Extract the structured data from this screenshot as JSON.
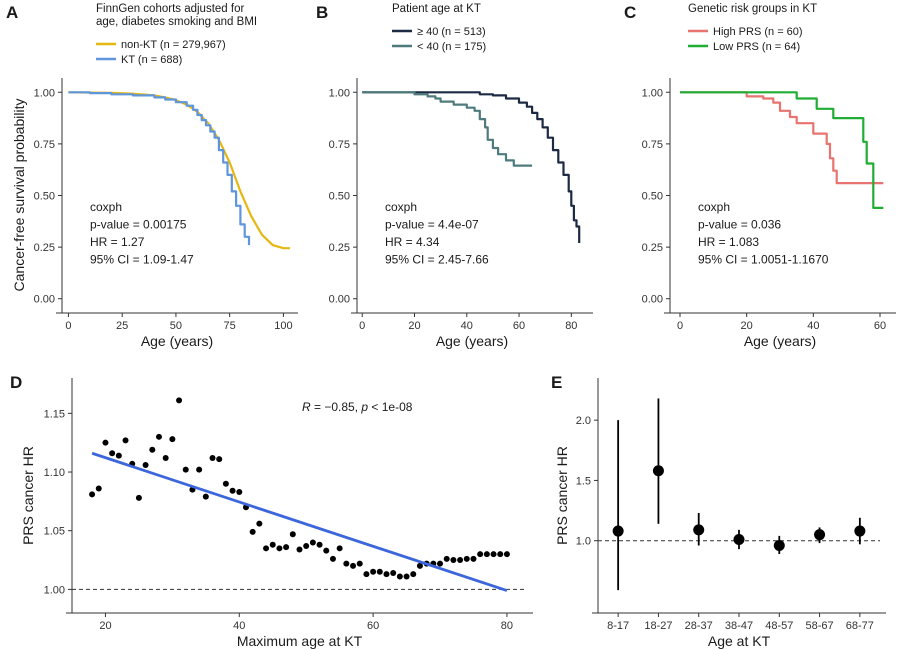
{
  "figure_labels": {
    "row1_ylabel": "Cancer-free survival probability",
    "row1_xlabel": "Age (years)"
  },
  "chart_data": [
    {
      "id": "A",
      "type": "line",
      "title": "FinnGen cohorts adjusted for age, diabetes smoking and BMI",
      "title_lines": [
        "FinnGen cohorts adjusted for",
        "age, diabetes smoking and BMI"
      ],
      "xlabel": "Age (years)",
      "ylabel": "Cancer-free survival probability",
      "xlim": [
        -3,
        104
      ],
      "ylim": [
        -0.04,
        1.04
      ],
      "xticks": [
        0,
        25,
        50,
        75,
        100
      ],
      "yticks": [
        0.0,
        0.25,
        0.5,
        0.75,
        1.0
      ],
      "legend_position": "top-left",
      "series": [
        {
          "name": "non-KT (n = 279,967)",
          "color": "#E5B70F",
          "step": false,
          "points": [
            [
              0,
              1.0
            ],
            [
              20,
              0.997
            ],
            [
              30,
              0.993
            ],
            [
              40,
              0.985
            ],
            [
              45,
              0.975
            ],
            [
              50,
              0.962
            ],
            [
              55,
              0.94
            ],
            [
              60,
              0.905
            ],
            [
              65,
              0.85
            ],
            [
              70,
              0.77
            ],
            [
              75,
              0.66
            ],
            [
              80,
              0.52
            ],
            [
              85,
              0.4
            ],
            [
              90,
              0.31
            ],
            [
              95,
              0.26
            ],
            [
              100,
              0.245
            ],
            [
              103,
              0.245
            ]
          ]
        },
        {
          "name": "KT (n = 688)",
          "color": "#5E95DC",
          "step": true,
          "points": [
            [
              0,
              1.0
            ],
            [
              10,
              0.996
            ],
            [
              20,
              0.99
            ],
            [
              30,
              0.985
            ],
            [
              40,
              0.975
            ],
            [
              45,
              0.965
            ],
            [
              50,
              0.952
            ],
            [
              55,
              0.935
            ],
            [
              58,
              0.915
            ],
            [
              60,
              0.89
            ],
            [
              62,
              0.865
            ],
            [
              64,
              0.84
            ],
            [
              66,
              0.81
            ],
            [
              68,
              0.78
            ],
            [
              70,
              0.72
            ],
            [
              72,
              0.66
            ],
            [
              74,
              0.6
            ],
            [
              76,
              0.52
            ],
            [
              78,
              0.45
            ],
            [
              80,
              0.36
            ],
            [
              82,
              0.3
            ],
            [
              84,
              0.26
            ]
          ]
        }
      ],
      "annotations": [
        "coxph",
        " p-value = 0.00175",
        "HR = 1.27",
        "95% CI = 1.09-1.47"
      ]
    },
    {
      "id": "B",
      "type": "line",
      "title": "Patient age at KT",
      "title_lines": [
        "Patient age at KT"
      ],
      "xlabel": "Age (years)",
      "ylabel": "",
      "xlim": [
        -2,
        86
      ],
      "ylim": [
        -0.04,
        1.04
      ],
      "xticks": [
        0,
        20,
        40,
        60,
        80
      ],
      "yticks": [
        0.0,
        0.25,
        0.5,
        0.75,
        1.0
      ],
      "legend_position": "top-left",
      "series": [
        {
          "name": "≥ 40 (n = 513)",
          "color": "#1C2A44",
          "step": true,
          "points": [
            [
              0,
              1.0
            ],
            [
              40,
              1.0
            ],
            [
              45,
              0.99
            ],
            [
              50,
              0.985
            ],
            [
              55,
              0.97
            ],
            [
              60,
              0.95
            ],
            [
              63,
              0.93
            ],
            [
              65,
              0.9
            ],
            [
              67,
              0.87
            ],
            [
              69,
              0.83
            ],
            [
              71,
              0.78
            ],
            [
              73,
              0.72
            ],
            [
              75,
              0.66
            ],
            [
              77,
              0.6
            ],
            [
              79,
              0.52
            ],
            [
              80,
              0.45
            ],
            [
              81,
              0.38
            ],
            [
              82,
              0.35
            ],
            [
              83,
              0.27
            ]
          ]
        },
        {
          "name": "< 40 (n = 175)",
          "color": "#4F7B7D",
          "step": true,
          "points": [
            [
              0,
              1.0
            ],
            [
              15,
              1.0
            ],
            [
              20,
              0.99
            ],
            [
              25,
              0.98
            ],
            [
              28,
              0.97
            ],
            [
              30,
              0.955
            ],
            [
              35,
              0.94
            ],
            [
              40,
              0.925
            ],
            [
              43,
              0.91
            ],
            [
              45,
              0.87
            ],
            [
              47,
              0.83
            ],
            [
              48,
              0.77
            ],
            [
              50,
              0.73
            ],
            [
              52,
              0.7
            ],
            [
              55,
              0.67
            ],
            [
              58,
              0.645
            ],
            [
              63,
              0.645
            ],
            [
              65,
              0.645
            ]
          ]
        }
      ],
      "annotations": [
        "coxph",
        "p-value = 4.4e-07",
        "HR = 4.34",
        "95% CI = 2.45-7.66"
      ]
    },
    {
      "id": "C",
      "type": "line",
      "title": "Genetic risk groups in KT",
      "title_lines": [
        "Genetic risk groups in KT"
      ],
      "xlabel": "Age (years)",
      "ylabel": "",
      "xlim": [
        -3,
        63
      ],
      "ylim": [
        -0.04,
        1.04
      ],
      "xticks": [
        0,
        20,
        40,
        60
      ],
      "yticks": [
        0.0,
        0.25,
        0.5,
        0.75,
        1.0
      ],
      "legend_position": "top-left",
      "series": [
        {
          "name": "High PRS (n = 60)",
          "color": "#E8736F",
          "step": true,
          "points": [
            [
              0,
              1.0
            ],
            [
              20,
              1.0
            ],
            [
              20,
              0.98
            ],
            [
              25,
              0.97
            ],
            [
              28,
              0.95
            ],
            [
              30,
              0.91
            ],
            [
              33,
              0.88
            ],
            [
              35,
              0.85
            ],
            [
              40,
              0.8
            ],
            [
              44,
              0.75
            ],
            [
              45,
              0.68
            ],
            [
              46,
              0.62
            ],
            [
              47,
              0.56
            ],
            [
              52,
              0.56
            ],
            [
              61,
              0.56
            ]
          ]
        },
        {
          "name": "Low PRS (n = 64)",
          "color": "#1FAE33",
          "step": true,
          "points": [
            [
              0,
              1.0
            ],
            [
              35,
              1.0
            ],
            [
              35,
              0.97
            ],
            [
              41,
              0.97
            ],
            [
              41,
              0.92
            ],
            [
              46,
              0.92
            ],
            [
              46,
              0.875
            ],
            [
              55,
              0.875
            ],
            [
              55,
              0.76
            ],
            [
              56,
              0.76
            ],
            [
              56,
              0.655
            ],
            [
              58,
              0.655
            ],
            [
              58,
              0.44
            ],
            [
              61,
              0.44
            ]
          ]
        }
      ],
      "annotations": [
        "coxph",
        "p-value = 0.036",
        "HR = 1.083",
        "95% CI = 1.0051-1.1670"
      ]
    },
    {
      "id": "D",
      "type": "scatter",
      "title": "",
      "xlabel": "Maximum age at KT",
      "ylabel": "PRS cancer HR",
      "xlim": [
        15,
        83
      ],
      "ylim": [
        0.985,
        1.175
      ],
      "xticks": [
        20,
        40,
        60,
        80
      ],
      "yticks": [
        1.0,
        1.05,
        1.1,
        1.15
      ],
      "reference_line_y": 1.0,
      "points": [
        [
          18,
          1.081
        ],
        [
          19,
          1.086
        ],
        [
          20,
          1.125
        ],
        [
          21,
          1.116
        ],
        [
          22,
          1.114
        ],
        [
          23,
          1.127
        ],
        [
          24,
          1.107
        ],
        [
          25,
          1.078
        ],
        [
          26,
          1.106
        ],
        [
          27,
          1.119
        ],
        [
          28,
          1.13
        ],
        [
          29,
          1.112
        ],
        [
          30,
          1.128
        ],
        [
          31,
          1.161
        ],
        [
          32,
          1.102
        ],
        [
          33,
          1.085
        ],
        [
          34,
          1.102
        ],
        [
          35,
          1.079
        ],
        [
          36,
          1.112
        ],
        [
          37,
          1.111
        ],
        [
          38,
          1.09
        ],
        [
          39,
          1.084
        ],
        [
          40,
          1.083
        ],
        [
          41,
          1.07
        ],
        [
          42,
          1.049
        ],
        [
          43,
          1.056
        ],
        [
          44,
          1.035
        ],
        [
          45,
          1.038
        ],
        [
          46,
          1.035
        ],
        [
          47,
          1.036
        ],
        [
          48,
          1.047
        ],
        [
          49,
          1.034
        ],
        [
          50,
          1.037
        ],
        [
          51,
          1.04
        ],
        [
          52,
          1.038
        ],
        [
          53,
          1.033
        ],
        [
          54,
          1.026
        ],
        [
          55,
          1.035
        ],
        [
          56,
          1.022
        ],
        [
          57,
          1.02
        ],
        [
          58,
          1.022
        ],
        [
          59,
          1.013
        ],
        [
          60,
          1.015
        ],
        [
          61,
          1.015
        ],
        [
          62,
          1.013
        ],
        [
          63,
          1.014
        ],
        [
          64,
          1.011
        ],
        [
          65,
          1.011
        ],
        [
          66,
          1.013
        ],
        [
          67,
          1.02
        ],
        [
          68,
          1.022
        ],
        [
          69,
          1.022
        ],
        [
          70,
          1.022
        ],
        [
          71,
          1.026
        ],
        [
          72,
          1.025
        ],
        [
          73,
          1.025
        ],
        [
          74,
          1.026
        ],
        [
          75,
          1.026
        ],
        [
          76,
          1.03
        ],
        [
          77,
          1.03
        ],
        [
          78,
          1.03
        ],
        [
          79,
          1.03
        ],
        [
          80,
          1.03
        ]
      ],
      "fit_line": {
        "color": "#3C66DB",
        "points": [
          [
            18,
            1.116
          ],
          [
            80,
            0.999
          ]
        ]
      },
      "annotation_R": "R",
      "annotation_rest": " = −0.85, ",
      "annotation_p": "p",
      "annotation_ptail": " < 1e-08"
    },
    {
      "id": "E",
      "type": "scatter",
      "title": "",
      "xlabel": "Age at KT",
      "ylabel": "PRS cancer HR",
      "ylim": [
        0.45,
        2.3
      ],
      "yticks": [
        1.0,
        1.5,
        2.0
      ],
      "ytick_labels": [
        "1.0",
        "1.5",
        "2.0"
      ],
      "reference_line_y": 1.0,
      "categories": [
        "8-17",
        "18-27",
        "28-37",
        "38-47",
        "48-57",
        "58-67",
        "68-77"
      ],
      "values": [
        1.08,
        1.58,
        1.09,
        1.01,
        0.96,
        1.05,
        1.08
      ],
      "ci_low": [
        0.59,
        1.14,
        0.96,
        0.93,
        0.89,
        0.98,
        0.97
      ],
      "ci_high": [
        2.0,
        2.18,
        1.23,
        1.09,
        1.04,
        1.11,
        1.19
      ]
    }
  ]
}
